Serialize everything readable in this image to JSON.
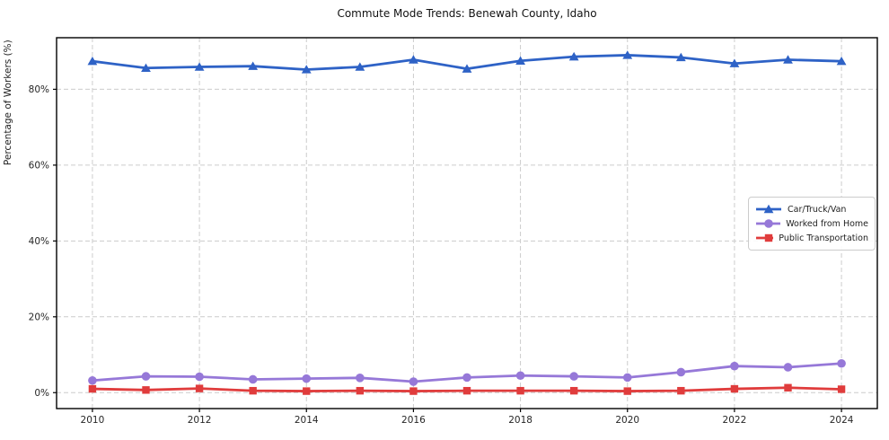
{
  "chart_data": {
    "type": "line",
    "title": "Commute Mode Trends: Benewah County, Idaho",
    "xlabel": "",
    "ylabel": "Percentage of Workers (%)",
    "x": [
      2010,
      2011,
      2012,
      2013,
      2014,
      2015,
      2016,
      2017,
      2018,
      2019,
      2020,
      2021,
      2022,
      2023,
      2024
    ],
    "x_ticks": [
      2010,
      2012,
      2014,
      2016,
      2018,
      2020,
      2022,
      2024
    ],
    "x_tick_labels": [
      "2010",
      "2012",
      "2014",
      "2016",
      "2018",
      "2020",
      "2022",
      "2024"
    ],
    "y_ticks": [
      0,
      20,
      40,
      60,
      80
    ],
    "y_tick_labels": [
      "0%",
      "20%",
      "40%",
      "60%",
      "80%"
    ],
    "xlim": [
      2009.33,
      2024.67
    ],
    "ylim": [
      -4.2,
      93.6
    ],
    "grid": true,
    "grid_style": "dashed",
    "legend_position": "center-right",
    "colors": {
      "background": "#ffffff",
      "grid": "#cccccc",
      "axis_frame": "#000000",
      "tick_text": "#262626",
      "title_text": "#111111"
    },
    "series": [
      {
        "name": "Car/Truck/Van",
        "color": "#2e62c6",
        "marker": "triangle",
        "values": [
          87.4,
          85.6,
          85.9,
          86.1,
          85.2,
          85.9,
          87.8,
          85.4,
          87.5,
          88.6,
          89.0,
          88.4,
          86.8,
          87.8,
          87.4
        ]
      },
      {
        "name": "Worked from Home",
        "color": "#9678d8",
        "marker": "circle",
        "values": [
          3.2,
          4.3,
          4.2,
          3.5,
          3.7,
          3.9,
          2.9,
          4.0,
          4.5,
          4.3,
          4.0,
          5.4,
          7.0,
          6.7,
          7.7
        ]
      },
      {
        "name": "Public Transportation",
        "color": "#e03c3c",
        "marker": "square",
        "values": [
          1.0,
          0.7,
          1.1,
          0.5,
          0.4,
          0.5,
          0.4,
          0.5,
          0.5,
          0.5,
          0.4,
          0.5,
          1.0,
          1.3,
          0.9
        ]
      }
    ]
  }
}
